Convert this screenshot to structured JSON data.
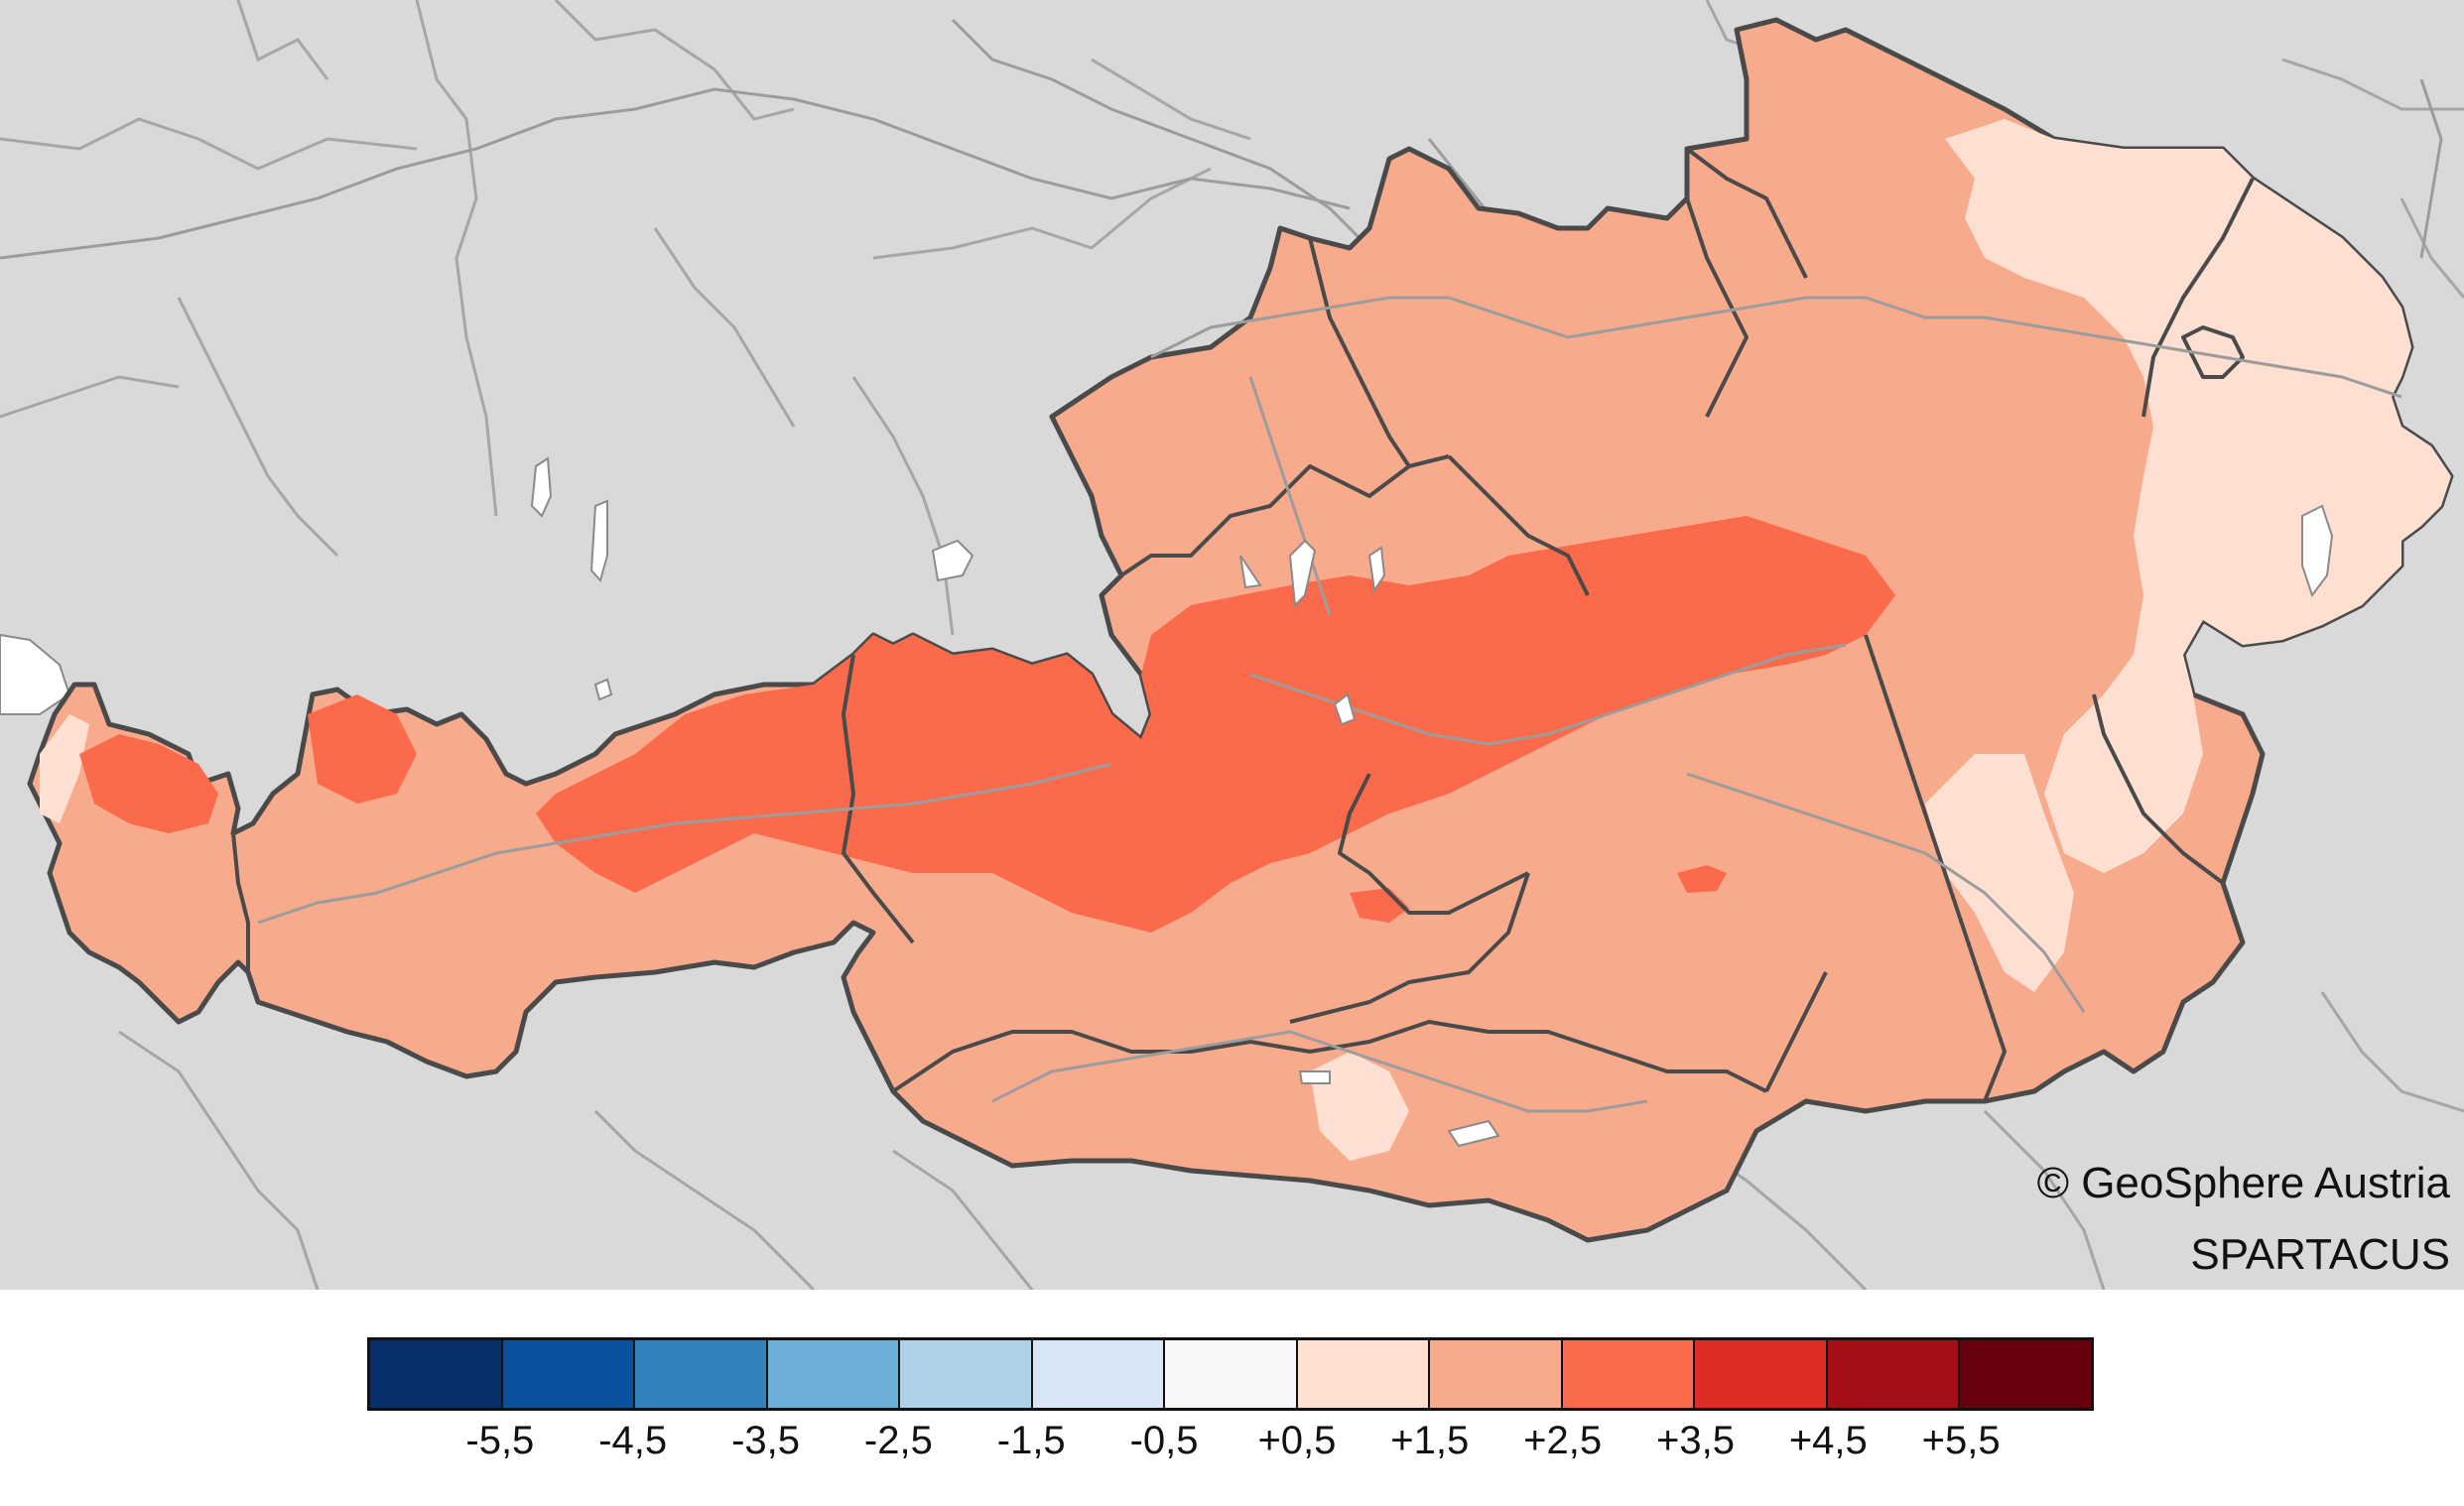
{
  "map": {
    "colors": {
      "background": "#d9d9d9",
      "neighbor_border": "#9a9a9a",
      "country_border": "#4a4a4a",
      "rivers": "#999999",
      "lakes": "#ffffff"
    },
    "dominant_anomaly_class": "+1,5 to +2,5",
    "alpine_anomaly_class": "+2,5 to +3,5",
    "east_anomaly_class": "+0,5 to +1,5"
  },
  "credits": {
    "line1": "© GeoSphere Austria",
    "line2": "SPARTACUS"
  },
  "legend": {
    "colors": [
      "#08306b",
      "#08519c",
      "#3182bd",
      "#6baed6",
      "#b0d2e8",
      "#d6e6f5",
      "#f7f7f7",
      "#fde0d2",
      "#f8ab8c",
      "#fb6a4a",
      "#de2d26",
      "#a50f15",
      "#67000d"
    ],
    "labels": [
      "-5,5",
      "-4,5",
      "-3,5",
      "-2,5",
      "-1,5",
      "-0,5",
      "+0,5",
      "+1,5",
      "+2,5",
      "+3,5",
      "+4,5",
      "+5,5"
    ]
  }
}
